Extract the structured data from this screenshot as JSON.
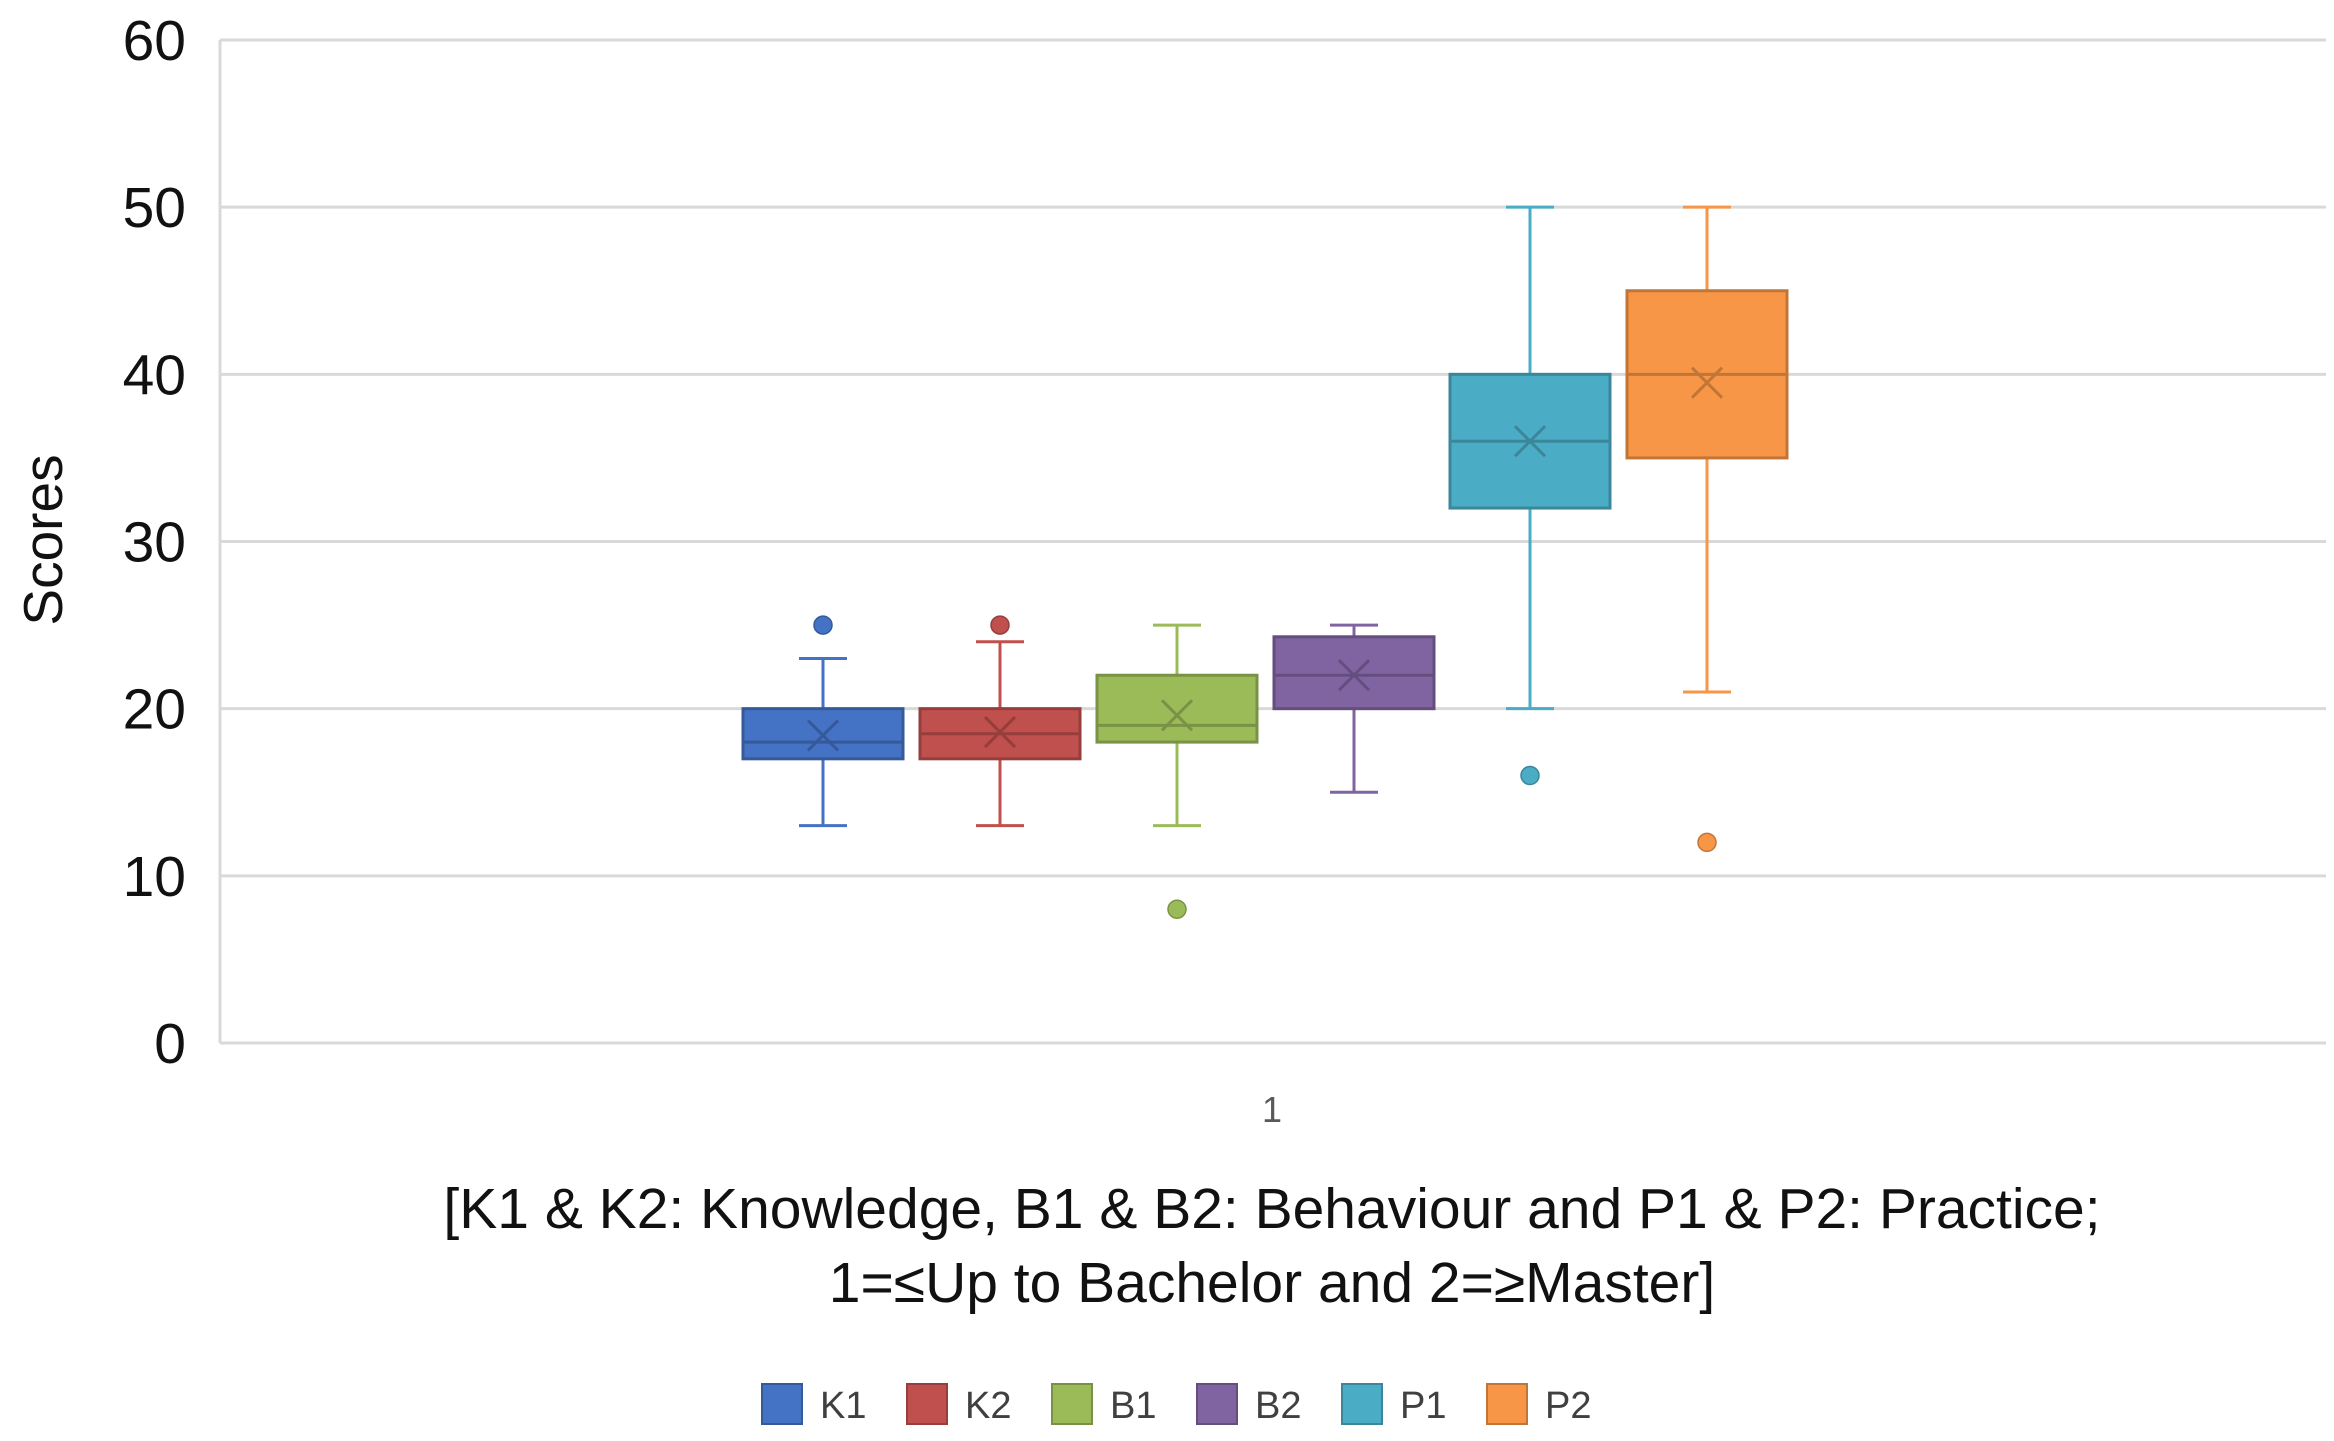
{
  "chart_data": {
    "type": "boxplot",
    "title": "",
    "ylabel": "Scores",
    "xlabel_lines": [
      "[K1 & K2: Knowledge, B1 & B2: Behaviour and P1 & P2: Practice;",
      "1=≤Up to Bachelor and 2=≥Master]"
    ],
    "ylim": [
      0,
      60
    ],
    "yticks": [
      "0",
      "10",
      "20",
      "30",
      "40",
      "50",
      "60"
    ],
    "categories": [
      "1"
    ],
    "grid": true,
    "legend_position": "bottom",
    "series": [
      {
        "name": "K1",
        "color": "#4472C4",
        "min": 13,
        "q1": 17,
        "median": 18,
        "q3": 20,
        "max": 23,
        "mean": 18.4,
        "outliers": [
          25
        ]
      },
      {
        "name": "K2",
        "color": "#C0504D",
        "min": 13,
        "q1": 17,
        "median": 18.5,
        "q3": 20,
        "max": 24,
        "mean": 18.6,
        "outliers": [
          25
        ]
      },
      {
        "name": "B1",
        "color": "#9BBB59",
        "min": 13,
        "q1": 18,
        "median": 19,
        "q3": 22,
        "max": 25,
        "mean": 19.6,
        "outliers": [
          8
        ]
      },
      {
        "name": "B2",
        "color": "#8064A2",
        "min": 15,
        "q1": 20,
        "median": 22,
        "q3": 24.3,
        "max": 25,
        "mean": 22,
        "outliers": []
      },
      {
        "name": "P1",
        "color": "#4BACC6",
        "min": 20,
        "q1": 32,
        "median": 36,
        "q3": 40,
        "max": 50,
        "mean": 36,
        "outliers": [
          16
        ]
      },
      {
        "name": "P2",
        "color": "#F79646",
        "min": 21,
        "q1": 35,
        "median": 40,
        "q3": 45,
        "max": 50,
        "mean": 39.5,
        "outliers": [
          12
        ]
      }
    ]
  }
}
